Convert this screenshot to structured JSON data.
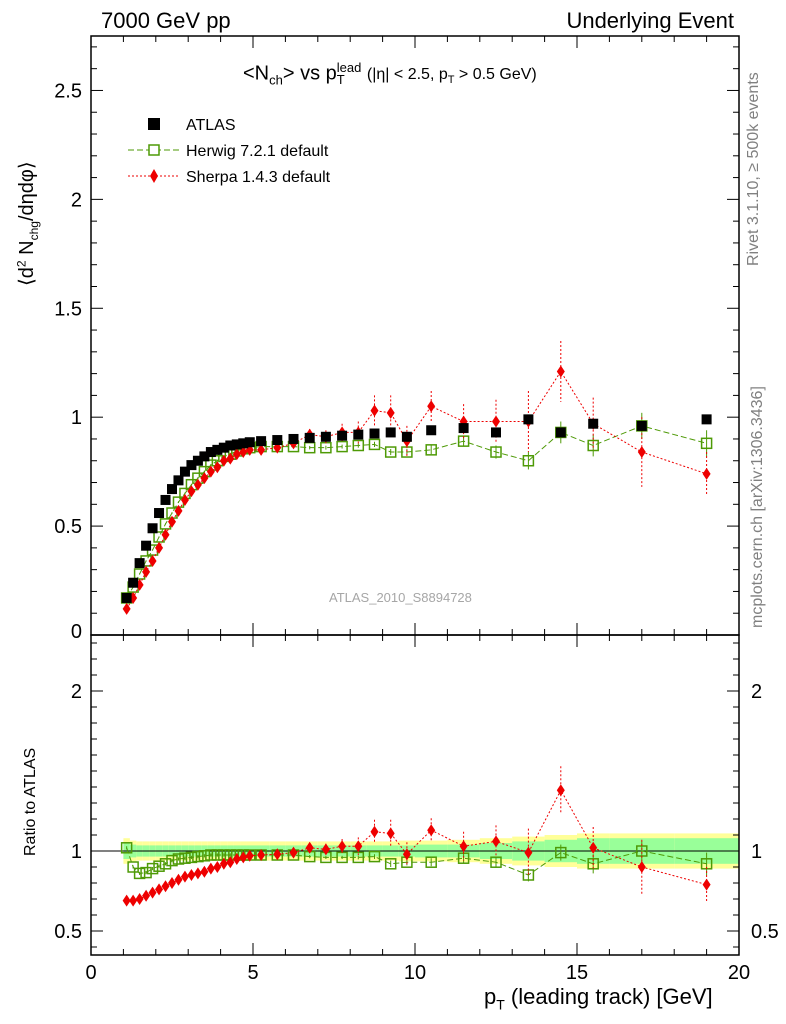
{
  "header": {
    "left": "7000 GeV pp",
    "right": "Underlying Event"
  },
  "side_text": {
    "rivet": "Rivet 3.1.10, ≥ 500k events",
    "mcplots": "mcplots.cern.ch [arXiv:1306.3436]"
  },
  "chart_data": [
    {
      "type": "scatter",
      "title": "<N_ch> vs p_T^lead (|η| < 2.5, p_T > 0.5 GeV)",
      "ylabel": "⟨d² N_chg/dηdφ⟩",
      "watermark": "ATLAS_2010_S8894728",
      "xlim": [
        0,
        20
      ],
      "ylim": [
        0,
        2.75
      ],
      "yticks": [
        0,
        0.5,
        1,
        1.5,
        2,
        2.5
      ],
      "ytick_labels": [
        "0",
        "0.5",
        "1",
        "1.5",
        "2",
        "2.5"
      ],
      "legend_placement": "top-left",
      "series": [
        {
          "name": "ATLAS",
          "color": "#000000",
          "marker": "filled-square",
          "x": [
            1.1,
            1.3,
            1.5,
            1.7,
            1.9,
            2.1,
            2.3,
            2.5,
            2.7,
            2.9,
            3.1,
            3.3,
            3.5,
            3.7,
            3.9,
            4.1,
            4.3,
            4.5,
            4.7,
            4.9,
            5.25,
            5.75,
            6.25,
            6.75,
            7.25,
            7.75,
            8.25,
            8.75,
            9.25,
            9.75,
            10.5,
            11.5,
            12.5,
            13.5,
            14.5,
            15.5,
            17.0,
            19.0
          ],
          "y": [
            0.17,
            0.24,
            0.33,
            0.41,
            0.49,
            0.56,
            0.62,
            0.67,
            0.71,
            0.75,
            0.78,
            0.8,
            0.82,
            0.84,
            0.85,
            0.86,
            0.87,
            0.875,
            0.88,
            0.885,
            0.89,
            0.895,
            0.9,
            0.905,
            0.91,
            0.915,
            0.92,
            0.925,
            0.93,
            0.91,
            0.94,
            0.95,
            0.93,
            0.99,
            0.93,
            0.97,
            0.96,
            0.99
          ]
        },
        {
          "name": "Herwig 7.2.1 default",
          "color": "#4e9a06",
          "marker": "open-square",
          "linestyle": "dashed",
          "x": [
            1.1,
            1.3,
            1.5,
            1.7,
            1.9,
            2.1,
            2.3,
            2.5,
            2.7,
            2.9,
            3.1,
            3.3,
            3.5,
            3.7,
            3.9,
            4.1,
            4.3,
            4.5,
            4.7,
            4.9,
            5.25,
            5.75,
            6.25,
            6.75,
            7.25,
            7.75,
            8.25,
            8.75,
            9.25,
            9.75,
            10.5,
            11.5,
            12.5,
            13.5,
            14.5,
            15.5,
            17.0,
            19.0
          ],
          "y": [
            0.17,
            0.22,
            0.28,
            0.34,
            0.39,
            0.45,
            0.51,
            0.56,
            0.61,
            0.65,
            0.69,
            0.72,
            0.75,
            0.78,
            0.8,
            0.82,
            0.83,
            0.845,
            0.855,
            0.86,
            0.865,
            0.865,
            0.865,
            0.86,
            0.86,
            0.865,
            0.87,
            0.875,
            0.84,
            0.84,
            0.85,
            0.89,
            0.84,
            0.8,
            0.93,
            0.87,
            0.96,
            0.88
          ],
          "yerr": [
            0.003,
            0.003,
            0.003,
            0.003,
            0.003,
            0.003,
            0.003,
            0.004,
            0.004,
            0.004,
            0.004,
            0.005,
            0.005,
            0.005,
            0.005,
            0.005,
            0.006,
            0.006,
            0.006,
            0.006,
            0.007,
            0.007,
            0.008,
            0.008,
            0.009,
            0.009,
            0.01,
            0.012,
            0.014,
            0.015,
            0.02,
            0.025,
            0.03,
            0.04,
            0.05,
            0.05,
            0.06,
            0.06
          ]
        },
        {
          "name": "Sherpa 1.4.3 default",
          "color": "#ee0000",
          "marker": "filled-diamond",
          "linestyle": "dotted",
          "x": [
            1.1,
            1.3,
            1.5,
            1.7,
            1.9,
            2.1,
            2.3,
            2.5,
            2.7,
            2.9,
            3.1,
            3.3,
            3.5,
            3.7,
            3.9,
            4.1,
            4.3,
            4.5,
            4.7,
            4.9,
            5.25,
            5.75,
            6.25,
            6.75,
            7.25,
            7.75,
            8.25,
            8.75,
            9.25,
            9.75,
            10.5,
            11.5,
            12.5,
            13.5,
            14.5,
            15.5,
            17.0,
            19.0
          ],
          "y": [
            0.12,
            0.17,
            0.23,
            0.29,
            0.34,
            0.4,
            0.46,
            0.52,
            0.57,
            0.62,
            0.66,
            0.69,
            0.72,
            0.75,
            0.77,
            0.8,
            0.81,
            0.83,
            0.84,
            0.85,
            0.85,
            0.86,
            0.88,
            0.92,
            0.91,
            0.93,
            0.93,
            1.03,
            1.02,
            0.89,
            1.05,
            0.98,
            0.98,
            0.98,
            1.21,
            0.97,
            0.84,
            0.74
          ],
          "yerr": [
            0.004,
            0.004,
            0.004,
            0.004,
            0.004,
            0.005,
            0.005,
            0.005,
            0.006,
            0.006,
            0.006,
            0.007,
            0.007,
            0.007,
            0.008,
            0.008,
            0.008,
            0.009,
            0.009,
            0.01,
            0.012,
            0.015,
            0.02,
            0.025,
            0.03,
            0.04,
            0.05,
            0.07,
            0.08,
            0.07,
            0.07,
            0.08,
            0.1,
            0.14,
            0.14,
            0.12,
            0.16,
            0.1
          ]
        }
      ]
    },
    {
      "type": "scatter",
      "ylabel": "Ratio to ATLAS",
      "xlabel": "p_T (leading track) [GeV]",
      "xlim": [
        0,
        20
      ],
      "xticks": [
        0,
        5,
        10,
        15,
        20
      ],
      "xtick_labels": [
        "0",
        "5",
        "10",
        "15",
        "20"
      ],
      "ylim": [
        0.35,
        2.35
      ],
      "yticks": [
        0.5,
        1,
        2
      ],
      "ytick_labels": [
        "0.5",
        "1",
        "2"
      ],
      "reference_line": 1,
      "band_colors": {
        "inner": "#99ff99",
        "outer": "#ffff99"
      },
      "band_x": [
        1.0,
        1.2,
        1.4,
        1.6,
        1.8,
        2.0,
        2.2,
        2.4,
        2.6,
        2.8,
        3.0,
        3.2,
        3.4,
        3.6,
        3.8,
        4.0,
        4.2,
        4.4,
        4.6,
        4.8,
        5.0,
        5.5,
        6.0,
        6.5,
        7.0,
        7.5,
        8.0,
        8.5,
        9.0,
        9.5,
        10.0,
        11.0,
        12.0,
        13.0,
        14.0,
        15.0,
        16.0,
        18.0,
        20.0
      ],
      "band_inner": [
        0.05,
        0.04,
        0.035,
        0.035,
        0.035,
        0.035,
        0.035,
        0.035,
        0.035,
        0.035,
        0.035,
        0.035,
        0.035,
        0.035,
        0.035,
        0.035,
        0.035,
        0.035,
        0.035,
        0.035,
        0.035,
        0.035,
        0.035,
        0.035,
        0.035,
        0.035,
        0.035,
        0.035,
        0.035,
        0.035,
        0.04,
        0.04,
        0.05,
        0.06,
        0.07,
        0.08,
        0.08,
        0.08
      ],
      "band_outer": [
        0.08,
        0.065,
        0.06,
        0.06,
        0.06,
        0.06,
        0.06,
        0.06,
        0.06,
        0.06,
        0.06,
        0.06,
        0.06,
        0.06,
        0.06,
        0.06,
        0.06,
        0.06,
        0.06,
        0.06,
        0.06,
        0.06,
        0.06,
        0.06,
        0.06,
        0.06,
        0.06,
        0.06,
        0.06,
        0.065,
        0.065,
        0.07,
        0.08,
        0.09,
        0.1,
        0.11,
        0.11,
        0.11
      ],
      "series": [
        {
          "name": "Herwig 7.2.1 default",
          "x": [
            1.1,
            1.3,
            1.5,
            1.7,
            1.9,
            2.1,
            2.3,
            2.5,
            2.7,
            2.9,
            3.1,
            3.3,
            3.5,
            3.7,
            3.9,
            4.1,
            4.3,
            4.5,
            4.7,
            4.9,
            5.25,
            5.75,
            6.25,
            6.75,
            7.25,
            7.75,
            8.25,
            8.75,
            9.25,
            9.75,
            10.5,
            11.5,
            12.5,
            13.5,
            14.5,
            15.5,
            17.0,
            19.0
          ],
          "y": [
            1.02,
            0.9,
            0.86,
            0.865,
            0.89,
            0.905,
            0.92,
            0.94,
            0.95,
            0.955,
            0.96,
            0.965,
            0.97,
            0.975,
            0.975,
            0.975,
            0.975,
            0.975,
            0.975,
            0.975,
            0.975,
            0.975,
            0.975,
            0.965,
            0.96,
            0.96,
            0.96,
            0.965,
            0.92,
            0.93,
            0.93,
            0.955,
            0.93,
            0.85,
            0.99,
            0.92,
            1.0,
            0.92
          ],
          "yerr": [
            0.01,
            0.01,
            0.01,
            0.01,
            0.01,
            0.01,
            0.01,
            0.01,
            0.01,
            0.01,
            0.01,
            0.01,
            0.01,
            0.01,
            0.01,
            0.01,
            0.01,
            0.01,
            0.01,
            0.01,
            0.01,
            0.01,
            0.01,
            0.01,
            0.01,
            0.01,
            0.012,
            0.015,
            0.02,
            0.02,
            0.025,
            0.03,
            0.035,
            0.04,
            0.05,
            0.06,
            0.06,
            0.07
          ]
        },
        {
          "name": "Sherpa 1.4.3 default",
          "x": [
            1.1,
            1.3,
            1.5,
            1.7,
            1.9,
            2.1,
            2.3,
            2.5,
            2.7,
            2.9,
            3.1,
            3.3,
            3.5,
            3.7,
            3.9,
            4.1,
            4.3,
            4.5,
            4.7,
            4.9,
            5.25,
            5.75,
            6.25,
            6.75,
            7.25,
            7.75,
            8.25,
            8.75,
            9.25,
            9.75,
            10.5,
            11.5,
            12.5,
            13.5,
            14.5,
            15.5,
            17.0,
            19.0
          ],
          "y": [
            0.69,
            0.69,
            0.7,
            0.72,
            0.74,
            0.76,
            0.78,
            0.8,
            0.82,
            0.84,
            0.85,
            0.86,
            0.87,
            0.89,
            0.9,
            0.92,
            0.93,
            0.95,
            0.96,
            0.97,
            0.975,
            0.98,
            0.99,
            1.02,
            1.01,
            1.03,
            1.03,
            1.12,
            1.11,
            0.98,
            1.13,
            1.03,
            1.06,
            0.99,
            1.38,
            1.02,
            0.9,
            0.79
          ],
          "yerr": [
            0.01,
            0.01,
            0.01,
            0.01,
            0.01,
            0.01,
            0.01,
            0.01,
            0.01,
            0.01,
            0.01,
            0.01,
            0.01,
            0.01,
            0.01,
            0.01,
            0.01,
            0.01,
            0.01,
            0.01,
            0.015,
            0.02,
            0.025,
            0.03,
            0.035,
            0.045,
            0.055,
            0.075,
            0.085,
            0.075,
            0.075,
            0.09,
            0.1,
            0.15,
            0.15,
            0.13,
            0.17,
            0.11
          ]
        }
      ]
    }
  ]
}
